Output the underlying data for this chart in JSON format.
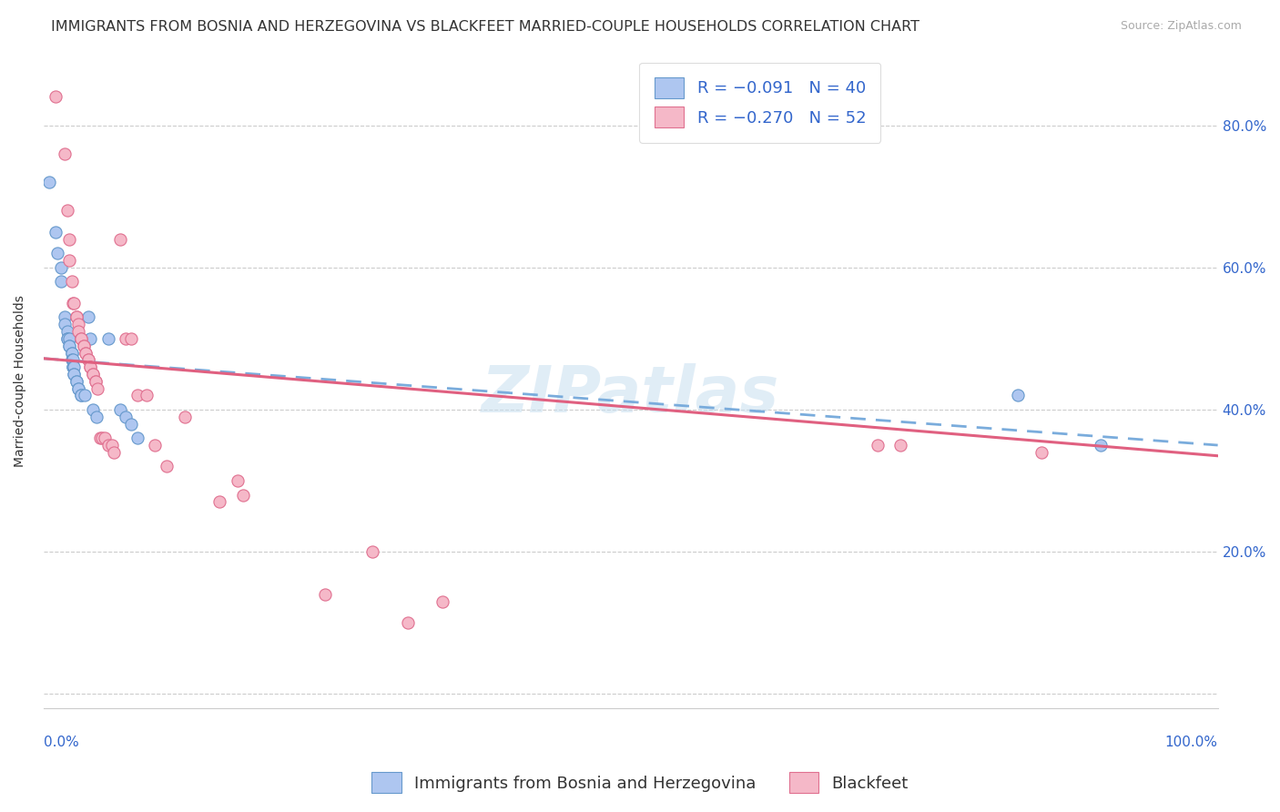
{
  "title": "IMMIGRANTS FROM BOSNIA AND HERZEGOVINA VS BLACKFEET MARRIED-COUPLE HOUSEHOLDS CORRELATION CHART",
  "source": "Source: ZipAtlas.com",
  "ylabel": "Married-couple Households",
  "y_ticks": [
    0.0,
    0.2,
    0.4,
    0.6,
    0.8
  ],
  "y_tick_labels_right": [
    "",
    "20.0%",
    "40.0%",
    "60.0%",
    "80.0%"
  ],
  "x_range": [
    0.0,
    1.0
  ],
  "y_range": [
    -0.02,
    0.9
  ],
  "watermark": "ZIPatlas",
  "background_color": "#ffffff",
  "grid_color": "#cccccc",
  "blue_points": [
    [
      0.005,
      0.72
    ],
    [
      0.01,
      0.65
    ],
    [
      0.012,
      0.62
    ],
    [
      0.015,
      0.6
    ],
    [
      0.015,
      0.58
    ],
    [
      0.018,
      0.53
    ],
    [
      0.018,
      0.52
    ],
    [
      0.02,
      0.51
    ],
    [
      0.02,
      0.5
    ],
    [
      0.02,
      0.5
    ],
    [
      0.022,
      0.5
    ],
    [
      0.022,
      0.49
    ],
    [
      0.022,
      0.49
    ],
    [
      0.024,
      0.48
    ],
    [
      0.024,
      0.48
    ],
    [
      0.024,
      0.47
    ],
    [
      0.025,
      0.47
    ],
    [
      0.025,
      0.46
    ],
    [
      0.025,
      0.46
    ],
    [
      0.026,
      0.46
    ],
    [
      0.026,
      0.45
    ],
    [
      0.026,
      0.45
    ],
    [
      0.028,
      0.44
    ],
    [
      0.028,
      0.44
    ],
    [
      0.03,
      0.43
    ],
    [
      0.03,
      0.43
    ],
    [
      0.032,
      0.42
    ],
    [
      0.032,
      0.42
    ],
    [
      0.035,
      0.42
    ],
    [
      0.038,
      0.53
    ],
    [
      0.04,
      0.5
    ],
    [
      0.042,
      0.4
    ],
    [
      0.045,
      0.39
    ],
    [
      0.055,
      0.5
    ],
    [
      0.065,
      0.4
    ],
    [
      0.07,
      0.39
    ],
    [
      0.075,
      0.38
    ],
    [
      0.08,
      0.36
    ],
    [
      0.83,
      0.42
    ],
    [
      0.9,
      0.35
    ]
  ],
  "pink_points": [
    [
      0.01,
      0.84
    ],
    [
      0.018,
      0.76
    ],
    [
      0.02,
      0.68
    ],
    [
      0.022,
      0.64
    ],
    [
      0.022,
      0.61
    ],
    [
      0.024,
      0.58
    ],
    [
      0.025,
      0.55
    ],
    [
      0.026,
      0.55
    ],
    [
      0.028,
      0.53
    ],
    [
      0.028,
      0.53
    ],
    [
      0.03,
      0.52
    ],
    [
      0.03,
      0.51
    ],
    [
      0.032,
      0.5
    ],
    [
      0.032,
      0.5
    ],
    [
      0.034,
      0.49
    ],
    [
      0.034,
      0.49
    ],
    [
      0.036,
      0.48
    ],
    [
      0.036,
      0.48
    ],
    [
      0.038,
      0.47
    ],
    [
      0.038,
      0.47
    ],
    [
      0.04,
      0.46
    ],
    [
      0.04,
      0.46
    ],
    [
      0.042,
      0.45
    ],
    [
      0.042,
      0.45
    ],
    [
      0.044,
      0.44
    ],
    [
      0.044,
      0.44
    ],
    [
      0.046,
      0.43
    ],
    [
      0.048,
      0.36
    ],
    [
      0.05,
      0.36
    ],
    [
      0.052,
      0.36
    ],
    [
      0.055,
      0.35
    ],
    [
      0.058,
      0.35
    ],
    [
      0.06,
      0.34
    ],
    [
      0.065,
      0.64
    ],
    [
      0.07,
      0.5
    ],
    [
      0.075,
      0.5
    ],
    [
      0.08,
      0.42
    ],
    [
      0.088,
      0.42
    ],
    [
      0.095,
      0.35
    ],
    [
      0.105,
      0.32
    ],
    [
      0.12,
      0.39
    ],
    [
      0.15,
      0.27
    ],
    [
      0.165,
      0.3
    ],
    [
      0.17,
      0.28
    ],
    [
      0.24,
      0.14
    ],
    [
      0.28,
      0.2
    ],
    [
      0.31,
      0.1
    ],
    [
      0.34,
      0.13
    ],
    [
      0.71,
      0.35
    ],
    [
      0.73,
      0.35
    ],
    [
      0.85,
      0.34
    ]
  ],
  "blue_line_x": [
    0.0,
    1.0
  ],
  "blue_line_y": [
    0.472,
    0.35
  ],
  "pink_line_x": [
    0.0,
    1.0
  ],
  "pink_line_y": [
    0.472,
    0.335
  ],
  "blue_color": "#aec6f0",
  "pink_color": "#f5b8c8",
  "blue_edge": "#6699cc",
  "pink_edge": "#e07090",
  "blue_line_color": "#7aacdc",
  "pink_line_color": "#e06080",
  "point_size": 90,
  "title_fontsize": 11.5,
  "axis_label_fontsize": 10,
  "tick_fontsize": 11,
  "legend_fontsize": 13
}
